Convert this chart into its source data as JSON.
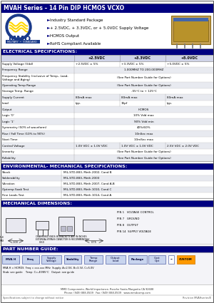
{
  "title": "MVAH Series – 14 Pin DIP HCMOS VCXO",
  "title_bg": "#000080",
  "title_fg": "#FFFFFF",
  "features": [
    "Industry Standard Package",
    "+ 2.5VDC, + 3.3VDC, or + 5.0VDC Supply Voltage",
    "HCMOS Output",
    "RoHS Compliant Available"
  ],
  "elec_header": "ELECTRICAL SPECIFICATIONS:",
  "elec_header_bg": "#000080",
  "elec_header_fg": "#FFFFFF",
  "elec_col_headers": [
    "",
    "+2.5VDC",
    "+3.3VDC",
    "+5.0VDC"
  ],
  "elec_rows": [
    [
      "Supply Voltage (Vdd)",
      "+2.5VDC ± 5%",
      "+3.3VDC ± 5%",
      "+5.0VDC ± 5%"
    ],
    [
      "Frequency Range",
      "1.000MHZ TO 200.000MHZ",
      "span",
      "span"
    ],
    [
      "Frequency Stability (inclusive of Temp., Load,\nVoltage and Aging)",
      "(See Part Number Guide for Options)",
      "span",
      "span"
    ],
    [
      "Operating Temp Range",
      "(See Part Number Guide for Options)",
      "span",
      "span"
    ],
    [
      "Storage Temp. Range",
      "-55°C to + 125°C",
      "span",
      "span"
    ],
    [
      "Supply Current",
      "80mA max",
      "80mA max",
      "80mA max"
    ],
    [
      "Load",
      "typ.",
      "15pf",
      "typ."
    ],
    [
      "Output",
      "HCMOS",
      "span",
      "span"
    ],
    [
      "Logic '0'",
      "10% Vdd max",
      "span",
      "span"
    ],
    [
      "Logic '1'",
      "90% Vdd min",
      "span",
      "span"
    ],
    [
      "Symmetry (50% of waveform)",
      "40%/60%",
      "span",
      "span"
    ],
    [
      "Rise / Fall Time (10% to 90%)",
      "10nSec max",
      "span",
      "span"
    ],
    [
      "Start Time",
      "10mSec max",
      "span",
      "span"
    ],
    [
      "Control Voltage",
      "1.0V VDC ± 1.0V VDC",
      "1.0V VDC ± 1.0V VDC",
      "2.5V VDC ± 2.0V VDC"
    ],
    [
      "Linearity",
      "(See Part Number Guide for Options)",
      "span",
      "span"
    ],
    [
      "Pullability",
      "(See Part Number Guide for Options)",
      "span",
      "span"
    ]
  ],
  "env_header": "ENVIRONMENTAL- MECHANICAL SPECIFICATIONS:",
  "env_header_bg": "#000080",
  "env_header_fg": "#FFFFFF",
  "env_rows": [
    [
      "Shock",
      "MIL-STD-883, Meth 2002, Cond B"
    ],
    [
      "Solderability",
      "MIL-STD-883, Meth 2003"
    ],
    [
      "Vibration",
      "MIL-STD-883, Meth 2007, Cond A-B"
    ],
    [
      "Optemp Soak Test",
      "MIL-STD-883, Meth 1010, Cond C"
    ],
    [
      "Fine Leads Test",
      "MIL-STD-883, Meth 1014, Cond A"
    ]
  ],
  "mech_header": "MECHANICAL DIMENSIONS:",
  "mech_header_bg": "#000080",
  "mech_header_fg": "#FFFFFF",
  "part_header": "PART NUMBER GUIDE:",
  "part_header_bg": "#000080",
  "part_header_fg": "#FFFFFF",
  "bg_color": "#FFFFFF",
  "row_even": "#FFFFFF",
  "row_odd": "#E8EAF0",
  "header_row_bg": "#D0D4E8",
  "col_sep": "#AAAAAA",
  "row_border": "#CCCCCC",
  "section_border": "#000080"
}
